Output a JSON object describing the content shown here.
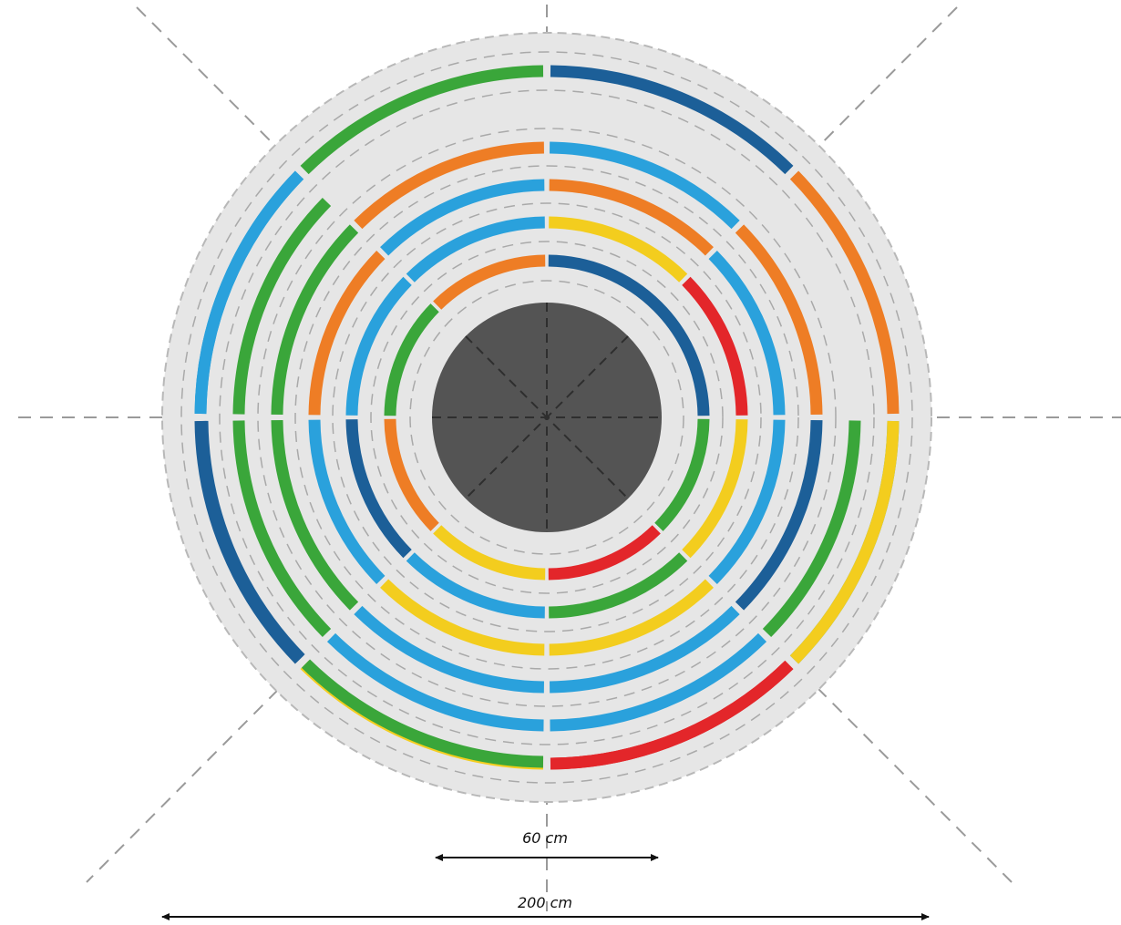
{
  "colors": {
    "green": "#3aa63a",
    "dark_blue": "#1c5f98",
    "light_blue": "#2aa1dc",
    "orange": "#ee7d25",
    "yellow": "#f3cd1e",
    "red": "#e3262a",
    "center_disk": "#545454",
    "background_disk": "#e6e6e6",
    "guide_line": "#9a9a9a"
  },
  "dimensions": {
    "inner_label": "60 cm",
    "outer_label": "200 cm"
  },
  "ring_segments": [
    {
      "ring": 1,
      "start": -90,
      "end": 0,
      "color": "dark_blue"
    },
    {
      "ring": 1,
      "start": 0,
      "end": 45,
      "color": "green"
    },
    {
      "ring": 1,
      "start": 45,
      "end": 90,
      "color": "red"
    },
    {
      "ring": 1,
      "start": 90,
      "end": 135,
      "color": "yellow"
    },
    {
      "ring": 1,
      "start": 135,
      "end": 180,
      "color": "orange"
    },
    {
      "ring": 1,
      "start": 180,
      "end": 225,
      "color": "green"
    },
    {
      "ring": 1,
      "start": 225,
      "end": 270,
      "color": "orange"
    },
    {
      "ring": 2,
      "start": -90,
      "end": -45,
      "color": "yellow"
    },
    {
      "ring": 2,
      "start": -45,
      "end": 0,
      "color": "red"
    },
    {
      "ring": 2,
      "start": 0,
      "end": 45,
      "color": "yellow"
    },
    {
      "ring": 2,
      "start": 45,
      "end": 90,
      "color": "green"
    },
    {
      "ring": 2,
      "start": 90,
      "end": 135,
      "color": "light_blue"
    },
    {
      "ring": 2,
      "start": 135,
      "end": 180,
      "color": "dark_blue"
    },
    {
      "ring": 2,
      "start": 180,
      "end": 225,
      "color": "light_blue"
    },
    {
      "ring": 2,
      "start": 225,
      "end": 270,
      "color": "light_blue"
    },
    {
      "ring": 3,
      "start": -90,
      "end": -45,
      "color": "orange"
    },
    {
      "ring": 3,
      "start": -45,
      "end": 0,
      "color": "light_blue"
    },
    {
      "ring": 3,
      "start": 0,
      "end": 45,
      "color": "light_blue"
    },
    {
      "ring": 3,
      "start": 45,
      "end": 90,
      "color": "yellow"
    },
    {
      "ring": 3,
      "start": 90,
      "end": 135,
      "color": "yellow"
    },
    {
      "ring": 3,
      "start": 135,
      "end": 180,
      "color": "light_blue"
    },
    {
      "ring": 3,
      "start": 180,
      "end": 225,
      "color": "orange"
    },
    {
      "ring": 3,
      "start": 225,
      "end": 270,
      "color": "light_blue"
    },
    {
      "ring": 4,
      "start": -90,
      "end": -45,
      "color": "light_blue"
    },
    {
      "ring": 4,
      "start": -45,
      "end": 0,
      "color": "orange"
    },
    {
      "ring": 4,
      "start": 0,
      "end": 45,
      "color": "dark_blue"
    },
    {
      "ring": 4,
      "start": 45,
      "end": 90,
      "color": "light_blue"
    },
    {
      "ring": 4,
      "start": 90,
      "end": 135,
      "color": "light_blue"
    },
    {
      "ring": 4,
      "start": 135,
      "end": 180,
      "color": "green"
    },
    {
      "ring": 4,
      "start": 180,
      "end": 225,
      "color": "green"
    },
    {
      "ring": 4,
      "start": 225,
      "end": 270,
      "color": "orange"
    },
    {
      "ring": 5,
      "start": 0,
      "end": 45,
      "color": "green"
    },
    {
      "ring": 5,
      "start": 45,
      "end": 90,
      "color": "light_blue"
    },
    {
      "ring": 5,
      "start": 90,
      "end": 135,
      "color": "light_blue"
    },
    {
      "ring": 5,
      "start": 135,
      "end": 180,
      "color": "green"
    },
    {
      "ring": 5,
      "start": 180,
      "end": 225,
      "color": "green"
    },
    {
      "ring": 6,
      "start": 0,
      "end": 45,
      "color": "light_blue"
    },
    {
      "ring": 6,
      "start": 45,
      "end": 90,
      "color": "red"
    },
    {
      "ring": 6,
      "start": 90,
      "end": 135,
      "color": "yellow"
    },
    {
      "ring": 6,
      "start": 135,
      "end": 180,
      "color": "dark_blue"
    },
    {
      "ring": 6,
      "start": 180,
      "end": 225,
      "color": "light_blue"
    },
    {
      "ring": 7,
      "start": -90,
      "end": -45,
      "color": "dark_blue"
    },
    {
      "ring": 7,
      "start": -45,
      "end": 0,
      "color": "orange"
    },
    {
      "ring": 7,
      "start": 0,
      "end": 45,
      "color": "yellow"
    },
    {
      "ring": 7,
      "start": 45,
      "end": 90,
      "color": "red"
    },
    {
      "ring": 7,
      "start": 90,
      "end": 135,
      "color": "green"
    },
    {
      "ring": 7,
      "start": 135,
      "end": 180,
      "color": "dark_blue"
    },
    {
      "ring": 7,
      "start": 180,
      "end": 225,
      "color": "light_blue"
    },
    {
      "ring": 7,
      "start": 225,
      "end": 270,
      "color": "green"
    }
  ]
}
